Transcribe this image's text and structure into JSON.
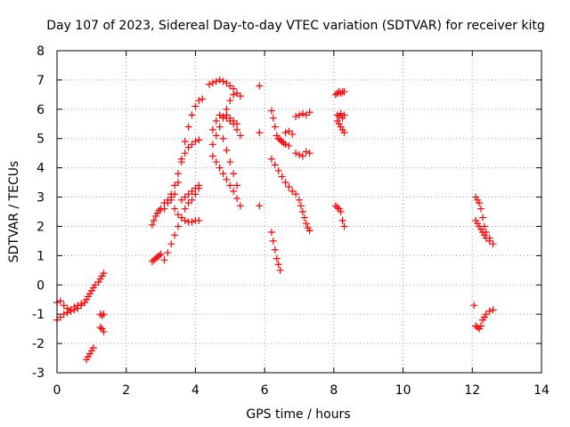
{
  "chart_data": {
    "type": "scatter",
    "title": "Day 107 of 2023, Sidereal Day-to-day VTEC variation (SDTVAR) for receiver kitg",
    "xlabel": "GPS time / hours",
    "ylabel": "SDTVAR / TECUs",
    "xlim": [
      0,
      14
    ],
    "ylim": [
      -3,
      8
    ],
    "xticks": [
      0,
      2,
      4,
      6,
      8,
      10,
      12,
      14
    ],
    "yticks": [
      -3,
      -2,
      -1,
      0,
      1,
      2,
      3,
      4,
      5,
      6,
      7,
      8
    ],
    "grid": true,
    "marker": "+",
    "color": "#ff0000",
    "segments": [
      {
        "x": [
          0.0,
          0.1,
          0.2,
          0.3,
          0.4,
          0.5,
          0.6,
          0.7
        ],
        "y": [
          -1.2,
          -1.1,
          -1.0,
          -0.95,
          -0.9,
          -0.85,
          -0.8,
          -0.7
        ]
      },
      {
        "x": [
          0.0,
          0.1,
          0.2,
          0.3,
          0.4,
          0.5,
          0.6,
          0.7
        ],
        "y": [
          -0.6,
          -0.55,
          -0.7,
          -0.8,
          -0.85,
          -0.75,
          -0.7,
          -0.65
        ]
      },
      {
        "x": [
          0.8,
          0.85,
          0.9,
          0.95,
          1.0,
          1.05,
          1.1
        ],
        "y": [
          -0.6,
          -0.5,
          -0.4,
          -0.3,
          -0.2,
          -0.1,
          0.0
        ]
      },
      {
        "x": [
          0.85,
          0.9,
          0.95,
          1.0,
          1.05
        ],
        "y": [
          -2.55,
          -2.45,
          -2.35,
          -2.25,
          -2.15
        ]
      },
      {
        "x": [
          1.2,
          1.25,
          1.3,
          1.35
        ],
        "y": [
          0.1,
          0.2,
          0.3,
          0.4
        ]
      },
      {
        "x": [
          1.25,
          1.3,
          1.35
        ],
        "y": [
          -1.0,
          -1.05,
          -1.0
        ]
      },
      {
        "x": [
          1.25,
          1.3,
          1.35
        ],
        "y": [
          -1.45,
          -1.5,
          -1.6
        ]
      },
      {
        "x": [
          2.75,
          2.8,
          2.85,
          2.9,
          2.95,
          3.0
        ],
        "y": [
          0.8,
          0.85,
          0.9,
          0.95,
          1.0,
          1.05
        ]
      },
      {
        "x": [
          2.75,
          2.8,
          2.85,
          2.9,
          2.95,
          3.0
        ],
        "y": [
          2.05,
          2.2,
          2.35,
          2.45,
          2.55,
          2.6
        ]
      },
      {
        "x": [
          3.1,
          3.2,
          3.3,
          3.4,
          3.5,
          3.6,
          3.7,
          3.8,
          3.9,
          4.0,
          4.1
        ],
        "y": [
          0.85,
          1.1,
          1.4,
          1.7,
          2.0,
          2.3,
          2.6,
          2.8,
          2.9,
          3.1,
          3.3
        ]
      },
      {
        "x": [
          3.1,
          3.2,
          3.3,
          3.4,
          3.5,
          3.6,
          3.7,
          3.8,
          3.9,
          4.0,
          4.1
        ],
        "y": [
          2.6,
          2.8,
          3.1,
          3.4,
          3.8,
          4.2,
          4.5,
          4.7,
          4.8,
          4.9,
          4.95
        ]
      },
      {
        "x": [
          3.1,
          3.2,
          3.3,
          3.4,
          3.5,
          3.6,
          3.7,
          3.8,
          3.9,
          4.0,
          4.1,
          4.2
        ],
        "y": [
          2.8,
          2.9,
          3.0,
          3.1,
          3.5,
          4.3,
          4.9,
          5.4,
          5.8,
          6.1,
          6.3,
          6.35
        ]
      },
      {
        "x": [
          3.3,
          3.4,
          3.5,
          3.6,
          3.7,
          3.8,
          3.9,
          4.0,
          4.1
        ],
        "y": [
          2.9,
          2.6,
          2.4,
          2.3,
          2.2,
          2.15,
          2.15,
          2.2,
          2.2
        ]
      },
      {
        "x": [
          3.6,
          3.7,
          3.8,
          3.9,
          4.0,
          4.1
        ],
        "y": [
          2.9,
          3.0,
          3.1,
          3.2,
          3.3,
          3.4
        ]
      },
      {
        "x": [
          4.4,
          4.5,
          4.6,
          4.7,
          4.8,
          4.9,
          5.0,
          5.1,
          5.2,
          5.3
        ],
        "y": [
          6.85,
          6.9,
          6.95,
          7.0,
          6.95,
          6.9,
          6.8,
          6.7,
          6.55,
          6.45
        ]
      },
      {
        "x": [
          4.5,
          4.6,
          4.7,
          4.8,
          4.9,
          5.0,
          5.1,
          5.2,
          5.3
        ],
        "y": [
          5.3,
          5.6,
          5.8,
          5.75,
          5.7,
          5.6,
          5.5,
          5.3,
          5.1
        ]
      },
      {
        "x": [
          4.5,
          4.6,
          4.7,
          4.8,
          4.9,
          5.0,
          5.1
        ],
        "y": [
          4.8,
          5.1,
          5.4,
          5.7,
          6.0,
          6.3,
          6.5
        ]
      },
      {
        "x": [
          4.5,
          4.6,
          4.7,
          4.8,
          4.9,
          5.0,
          5.1,
          5.2
        ],
        "y": [
          4.4,
          4.2,
          4.0,
          3.8,
          3.6,
          3.4,
          3.2,
          2.95
        ]
      },
      {
        "x": [
          4.8,
          4.9,
          5.0,
          5.1,
          5.2,
          5.3
        ],
        "y": [
          5.0,
          4.6,
          4.2,
          3.8,
          3.4,
          2.7
        ]
      },
      {
        "x": [
          4.9,
          5.0,
          5.1,
          5.2
        ],
        "y": [
          5.8,
          5.7,
          5.6,
          5.5
        ]
      },
      {
        "x": [
          5.85,
          5.85,
          5.85
        ],
        "y": [
          6.8,
          5.2,
          2.7
        ]
      },
      {
        "x": [
          6.2,
          6.25,
          6.3,
          6.35,
          6.4,
          6.45,
          6.5,
          6.55,
          6.6,
          6.7
        ],
        "y": [
          5.95,
          5.7,
          5.4,
          5.1,
          5.0,
          4.95,
          4.9,
          4.85,
          4.8,
          4.75
        ]
      },
      {
        "x": [
          6.6,
          6.7,
          6.8
        ],
        "y": [
          5.2,
          5.25,
          5.15
        ]
      },
      {
        "x": [
          6.2,
          6.3,
          6.4,
          6.5,
          6.6,
          6.7,
          6.8,
          6.9
        ],
        "y": [
          4.3,
          4.1,
          3.9,
          3.7,
          3.5,
          3.35,
          3.2,
          3.1
        ]
      },
      {
        "x": [
          6.2,
          6.25,
          6.3,
          6.35,
          6.4,
          6.45
        ],
        "y": [
          1.8,
          1.5,
          1.2,
          0.9,
          0.7,
          0.5
        ]
      },
      {
        "x": [
          6.9,
          7.0,
          7.1,
          7.2,
          7.3
        ],
        "y": [
          4.5,
          4.45,
          4.4,
          4.55,
          4.5
        ]
      },
      {
        "x": [
          6.9,
          7.0,
          7.1,
          7.2,
          7.3
        ],
        "y": [
          5.75,
          5.8,
          5.85,
          5.8,
          5.9
        ]
      },
      {
        "x": [
          7.0,
          7.05,
          7.1,
          7.15,
          7.2,
          7.25,
          7.3
        ],
        "y": [
          2.9,
          2.7,
          2.5,
          2.3,
          2.1,
          1.95,
          1.85
        ]
      },
      {
        "x": [
          8.05,
          8.1,
          8.15,
          8.2,
          8.25,
          8.3
        ],
        "y": [
          6.5,
          6.55,
          6.6,
          6.55,
          6.6,
          6.6
        ]
      },
      {
        "x": [
          8.1,
          8.15,
          8.2,
          8.25,
          8.3
        ],
        "y": [
          5.8,
          5.75,
          5.85,
          5.7,
          5.8
        ]
      },
      {
        "x": [
          8.1,
          8.15,
          8.2,
          8.25,
          8.3
        ],
        "y": [
          5.6,
          5.5,
          5.4,
          5.3,
          5.2
        ]
      },
      {
        "x": [
          8.05,
          8.1,
          8.15,
          8.2,
          8.25,
          8.3
        ],
        "y": [
          2.7,
          2.65,
          2.6,
          2.5,
          2.2,
          2.0
        ]
      },
      {
        "x": [
          12.1,
          12.15,
          12.2,
          12.25,
          12.3,
          12.35,
          12.4,
          12.5,
          12.6
        ],
        "y": [
          3.0,
          2.9,
          2.8,
          2.6,
          2.3,
          2.0,
          1.8,
          1.6,
          1.4
        ]
      },
      {
        "x": [
          12.1,
          12.15,
          12.2,
          12.25,
          12.3,
          12.35,
          12.4,
          12.5
        ],
        "y": [
          2.2,
          2.1,
          2.0,
          1.9,
          1.8,
          1.7,
          1.6,
          1.5
        ]
      },
      {
        "x": [
          12.05
        ],
        "y": [
          -0.7
        ]
      },
      {
        "x": [
          12.1,
          12.15,
          12.2,
          12.25,
          12.3,
          12.35,
          12.4,
          12.5,
          12.6
        ],
        "y": [
          -1.4,
          -1.45,
          -1.5,
          -1.4,
          -1.2,
          -1.1,
          -1.0,
          -0.9,
          -0.85
        ]
      }
    ]
  }
}
